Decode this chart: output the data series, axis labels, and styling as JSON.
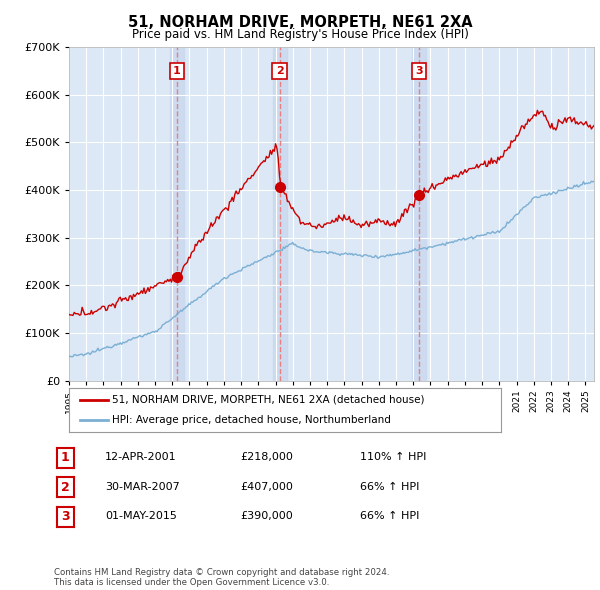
{
  "title": "51, NORHAM DRIVE, MORPETH, NE61 2XA",
  "subtitle": "Price paid vs. HM Land Registry's House Price Index (HPI)",
  "ytick_values": [
    0,
    100000,
    200000,
    300000,
    400000,
    500000,
    600000,
    700000
  ],
  "ylim": [
    0,
    700000
  ],
  "sale_dates": [
    2001.27,
    2007.24,
    2015.33
  ],
  "sale_prices": [
    218000,
    407000,
    390000
  ],
  "sale_labels": [
    "1",
    "2",
    "3"
  ],
  "legend_red": "51, NORHAM DRIVE, MORPETH, NE61 2XA (detached house)",
  "legend_blue": "HPI: Average price, detached house, Northumberland",
  "table_rows": [
    {
      "num": "1",
      "date": "12-APR-2001",
      "price": "£218,000",
      "pct": "110% ↑ HPI"
    },
    {
      "num": "2",
      "date": "30-MAR-2007",
      "price": "£407,000",
      "pct": "66% ↑ HPI"
    },
    {
      "num": "3",
      "date": "01-MAY-2015",
      "price": "£390,000",
      "pct": "66% ↑ HPI"
    }
  ],
  "footnote": "Contains HM Land Registry data © Crown copyright and database right 2024.\nThis data is licensed under the Open Government Licence v3.0.",
  "red_color": "#cc0000",
  "blue_color": "#7bafd4",
  "dashed_red": "#e88080",
  "bg_color": "#ffffff",
  "chart_bg": "#dce8f5",
  "grid_color": "#ffffff",
  "shade_color": "#c8d8ee"
}
